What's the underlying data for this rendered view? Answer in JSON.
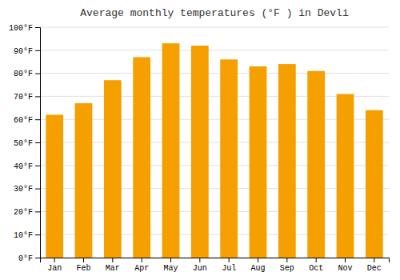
{
  "chart_data": {
    "type": "bar",
    "title": "Average monthly temperatures (°F ) in Devli",
    "categories": [
      "Jan",
      "Feb",
      "Mar",
      "Apr",
      "May",
      "Jun",
      "Jul",
      "Aug",
      "Sep",
      "Oct",
      "Nov",
      "Dec"
    ],
    "values": [
      62,
      67,
      77,
      87,
      93,
      92,
      86,
      83,
      84,
      81,
      71,
      64
    ],
    "color": "#F5A000",
    "ylim": [
      0,
      100
    ],
    "yticks": [
      {
        "value": 0,
        "label": "0°F"
      },
      {
        "value": 10,
        "label": "10°F"
      },
      {
        "value": 20,
        "label": "20°F"
      },
      {
        "value": 30,
        "label": "30°F"
      },
      {
        "value": 40,
        "label": "40°F"
      },
      {
        "value": 50,
        "label": "50°F"
      },
      {
        "value": 60,
        "label": "60°F"
      },
      {
        "value": 70,
        "label": "70°F"
      },
      {
        "value": 80,
        "label": "80°F"
      },
      {
        "value": 90,
        "label": "90°F"
      },
      {
        "value": 100,
        "label": "100°F"
      }
    ],
    "grid": true
  }
}
